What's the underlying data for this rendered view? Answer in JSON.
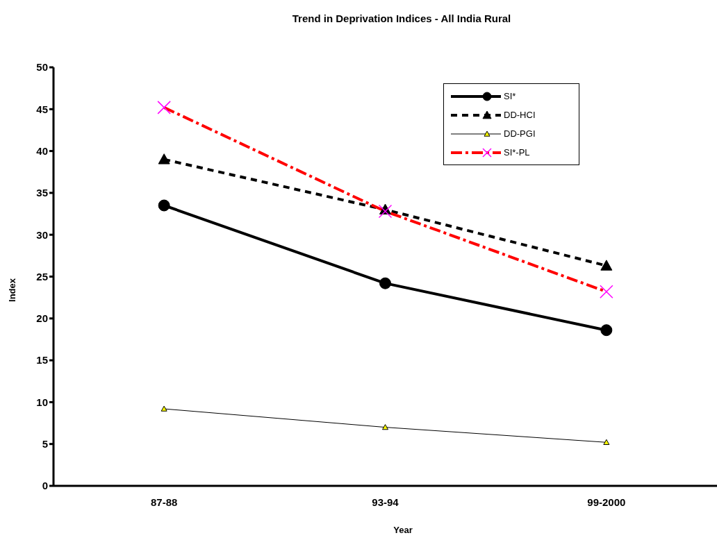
{
  "chart_data": {
    "type": "line",
    "title": "Trend in Deprivation Indices - All India Rural",
    "xlabel": "Year",
    "ylabel": "Index",
    "categories": [
      "87-88",
      "93-94",
      "99-2000"
    ],
    "series": [
      {
        "name": "SI*",
        "color": "#000000",
        "values": [
          33.5,
          24.2,
          18.6
        ],
        "marker": "circle",
        "line_style": "solid"
      },
      {
        "name": "DD-HCI",
        "color": "#000000",
        "values": [
          39.0,
          33.0,
          26.3
        ],
        "marker": "triangle",
        "line_style": "dashed"
      },
      {
        "name": "DD-PGI",
        "color": "#000000",
        "values": [
          9.2,
          7.0,
          5.2
        ],
        "marker": "triangle",
        "line_style": "solid"
      },
      {
        "name": "SI*-PL",
        "color": "#ff0000",
        "values": [
          45.2,
          32.8,
          23.2
        ],
        "marker": "cross",
        "line_style": "dashed"
      }
    ],
    "ylim": [
      0,
      50
    ],
    "yticks": [
      0,
      5,
      10,
      15,
      20,
      25,
      30,
      35,
      40,
      45,
      50
    ],
    "grid": false,
    "legend": "top right"
  }
}
